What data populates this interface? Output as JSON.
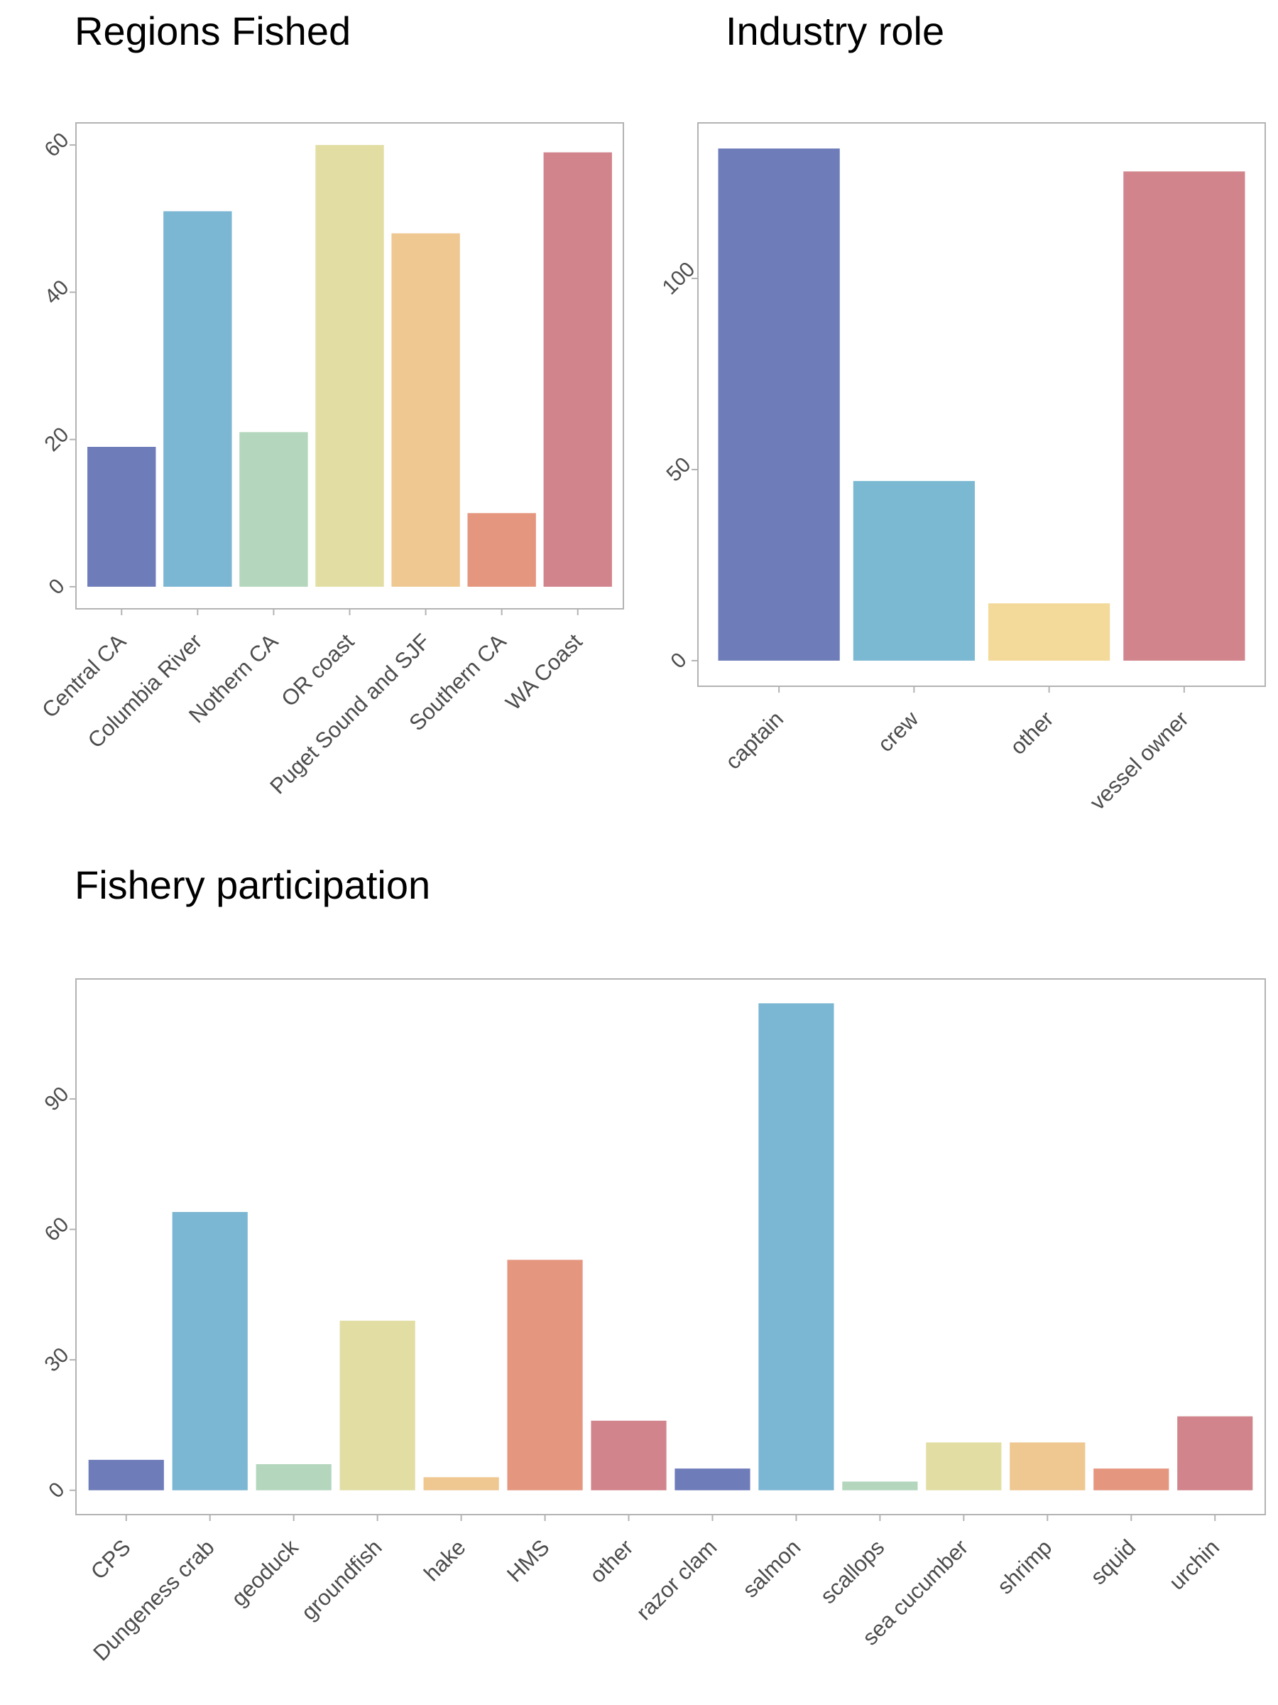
{
  "colors": {
    "palette": [
      "#6e7cb9",
      "#7bb6d3",
      "#b4d6bd",
      "#e2dea3",
      "#efc791",
      "#e4967f",
      "#d1848b"
    ],
    "industry_palette": [
      "#6e7cb9",
      "#7bb9d2",
      "#f4da9a",
      "#d1848b"
    ],
    "border": "#b3b3b3",
    "tick_text": "#4d4d4d"
  },
  "chart_data": [
    {
      "type": "bar",
      "title": "Regions Fished",
      "categories": [
        "Central CA",
        "Columbia River",
        "Nothern CA",
        "OR coast",
        "Puget Sound and SJF",
        "Southern CA",
        "WA Coast"
      ],
      "values": [
        19,
        51,
        21,
        60,
        48,
        10,
        59
      ],
      "ylim": [
        -3,
        63
      ],
      "yticks": [
        0,
        20,
        40,
        60
      ],
      "grid": false
    },
    {
      "type": "bar",
      "title": "Industry role",
      "categories": [
        "captain",
        "crew",
        "other",
        "vessel owner"
      ],
      "values": [
        134,
        47,
        15,
        128
      ],
      "ylim": [
        -6.7,
        140.7
      ],
      "yticks": [
        0,
        50,
        100
      ],
      "grid": false
    },
    {
      "type": "bar",
      "title": "Fishery participation",
      "categories": [
        "CPS",
        "Dungeness crab",
        "geoduck",
        "groundfish",
        "hake",
        "HMS",
        "other",
        "razor clam",
        "salmon",
        "scallops",
        "sea cucumber",
        "shrimp",
        "squid",
        "urchin"
      ],
      "values": [
        7,
        64,
        6,
        39,
        3,
        53,
        16,
        5,
        112,
        2,
        11,
        11,
        5,
        17
      ],
      "ylim": [
        -5.6,
        117.6
      ],
      "yticks": [
        0,
        30,
        60,
        90
      ],
      "grid": false
    }
  ]
}
